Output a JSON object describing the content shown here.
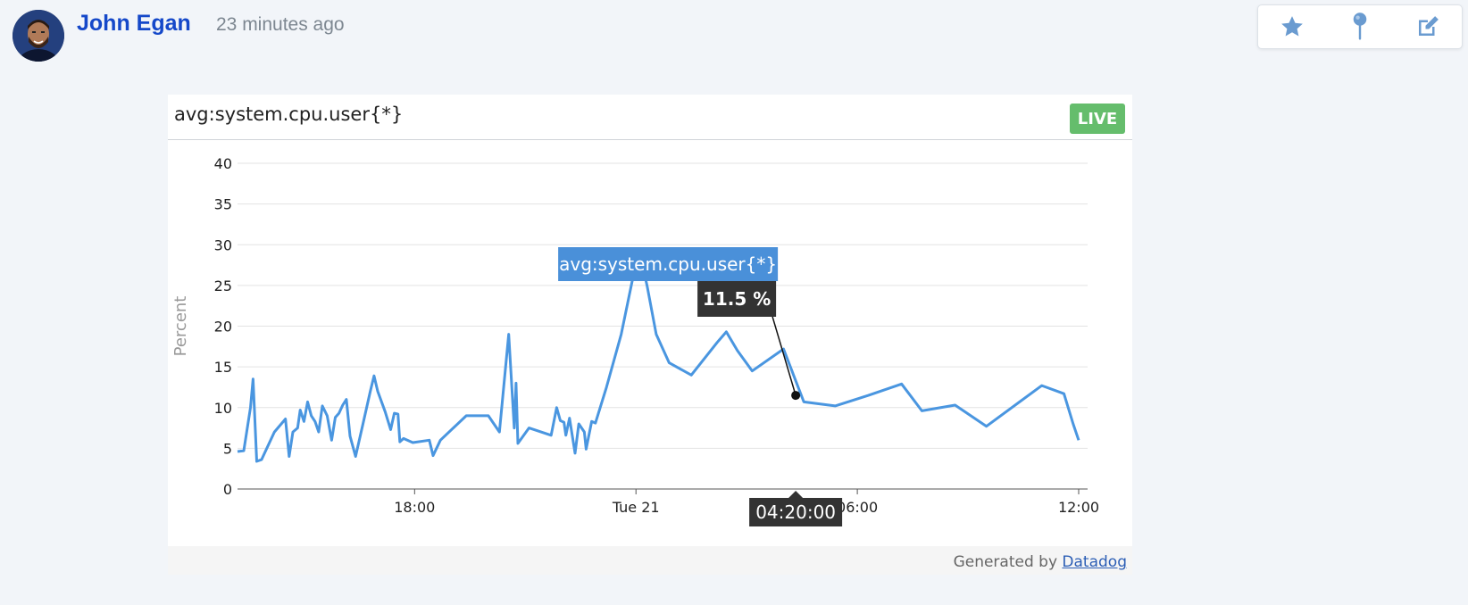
{
  "post": {
    "author": "John Egan",
    "time_ago": "23 minutes ago"
  },
  "actions": [
    {
      "icon": "star-icon"
    },
    {
      "icon": "pin-icon"
    },
    {
      "icon": "edit-icon"
    }
  ],
  "widget": {
    "title": "avg:system.cpu.user{*}",
    "live_label": "LIVE",
    "footer_prefix": "Generated by",
    "footer_link": "Datadog"
  },
  "colors": {
    "author": "#1548c9",
    "series": "#4a96e0",
    "live": "#65bd6c",
    "tooltip_dark": "#333333",
    "tooltip_series": "#4a90d9"
  },
  "chart_data": {
    "type": "line",
    "ylabel": "Percent",
    "ylim": [
      0,
      40
    ],
    "yticks": [
      0,
      5,
      10,
      15,
      20,
      25,
      30,
      35,
      40
    ],
    "x_unit": "hours since 12:00 Mon 20",
    "xlim": [
      1.2,
      24
    ],
    "xticks": [
      {
        "x": 6,
        "label": "18:00"
      },
      {
        "x": 12,
        "label": "Tue 21"
      },
      {
        "x": 18,
        "label": "06:00"
      },
      {
        "x": 24,
        "label": "12:00"
      }
    ],
    "grid": true,
    "series": [
      {
        "name": "avg:system.cpu.user{*}",
        "points": [
          [
            1.2,
            4.6
          ],
          [
            1.37,
            4.7
          ],
          [
            1.55,
            10
          ],
          [
            1.62,
            13.5
          ],
          [
            1.72,
            3.4
          ],
          [
            1.85,
            3.6
          ],
          [
            2.2,
            7
          ],
          [
            2.5,
            8.6
          ],
          [
            2.6,
            4
          ],
          [
            2.7,
            7
          ],
          [
            2.83,
            7.5
          ],
          [
            2.9,
            9.7
          ],
          [
            3.0,
            8.3
          ],
          [
            3.1,
            10.7
          ],
          [
            3.2,
            9
          ],
          [
            3.3,
            8.3
          ],
          [
            3.4,
            7
          ],
          [
            3.5,
            10.2
          ],
          [
            3.63,
            9
          ],
          [
            3.75,
            6
          ],
          [
            3.85,
            8.8
          ],
          [
            3.95,
            9.3
          ],
          [
            4.05,
            10.3
          ],
          [
            4.15,
            11
          ],
          [
            4.25,
            6.5
          ],
          [
            4.4,
            4
          ],
          [
            4.6,
            8
          ],
          [
            4.8,
            12
          ],
          [
            4.9,
            13.9
          ],
          [
            5.0,
            12
          ],
          [
            5.2,
            9.5
          ],
          [
            5.35,
            7.3
          ],
          [
            5.45,
            9.3
          ],
          [
            5.55,
            9.2
          ],
          [
            5.6,
            5.8
          ],
          [
            5.7,
            6.2
          ],
          [
            5.95,
            5.7
          ],
          [
            6.4,
            6
          ],
          [
            6.5,
            4.1
          ],
          [
            6.7,
            6
          ],
          [
            7.4,
            9
          ],
          [
            8.0,
            9
          ],
          [
            8.3,
            7
          ],
          [
            8.55,
            19
          ],
          [
            8.7,
            7.5
          ],
          [
            8.75,
            13
          ],
          [
            8.8,
            5.6
          ],
          [
            9.1,
            7.5
          ],
          [
            9.7,
            6.6
          ],
          [
            9.85,
            10
          ],
          [
            9.95,
            8.4
          ],
          [
            10.05,
            8.2
          ],
          [
            10.1,
            6.6
          ],
          [
            10.2,
            8.7
          ],
          [
            10.35,
            4.4
          ],
          [
            10.45,
            8
          ],
          [
            10.6,
            7
          ],
          [
            10.65,
            4.9
          ],
          [
            10.8,
            8.3
          ],
          [
            10.9,
            8.1
          ],
          [
            11.2,
            12.5
          ],
          [
            11.6,
            19
          ],
          [
            11.9,
            25.6
          ],
          [
            12.1,
            29
          ],
          [
            12.3,
            25
          ],
          [
            12.55,
            19
          ],
          [
            12.9,
            15.5
          ],
          [
            13.5,
            14
          ],
          [
            14.2,
            18
          ],
          [
            14.45,
            19.3
          ],
          [
            14.75,
            17
          ],
          [
            15.15,
            14.5
          ],
          [
            16.0,
            17.2
          ],
          [
            16.55,
            10.7
          ],
          [
            17.4,
            10.2
          ],
          [
            18.3,
            11.5
          ],
          [
            19.2,
            12.9
          ],
          [
            19.75,
            9.6
          ],
          [
            20.65,
            10.3
          ],
          [
            21.5,
            7.7
          ],
          [
            23.0,
            12.7
          ],
          [
            23.6,
            11.7
          ],
          [
            23.85,
            8
          ],
          [
            24.0,
            6
          ]
        ]
      }
    ],
    "tooltip": {
      "series_label": "avg:system.cpu.user{*}",
      "value_label": "11.5 %",
      "time_label": "04:20:00",
      "point": [
        16.33,
        11.5
      ]
    }
  }
}
